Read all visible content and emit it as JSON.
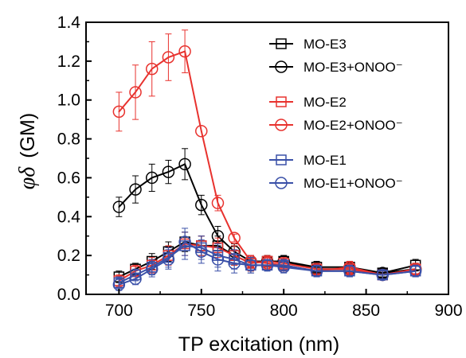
{
  "chart_data": {
    "type": "scatter",
    "xlabel": "TP excitation (nm)",
    "ylabel_symbol": "φδ",
    "ylabel_unit": "(GM)",
    "xlim": [
      680,
      900
    ],
    "ylim": [
      0.0,
      1.4
    ],
    "x_ticks": [
      "700",
      "750",
      "800",
      "850",
      "900"
    ],
    "y_ticks": [
      "0.0",
      "0.2",
      "0.4",
      "0.6",
      "0.8",
      "1.0",
      "1.2",
      "1.4"
    ],
    "grid": false,
    "legend_position": "top-right",
    "series": [
      {
        "name": "MO-E3",
        "color": "#000000",
        "marker": "square",
        "x": [
          700,
          710,
          720,
          730,
          740,
          750,
          760,
          770,
          780,
          790,
          800,
          820,
          840,
          860,
          880
        ],
        "y": [
          0.09,
          0.13,
          0.17,
          0.22,
          0.27,
          0.25,
          0.25,
          0.2,
          0.16,
          0.17,
          0.17,
          0.14,
          0.14,
          0.11,
          0.15
        ],
        "err": [
          0.03,
          0.03,
          0.04,
          0.05,
          0.05,
          0.05,
          0.05,
          0.05,
          0.04,
          0.03,
          0.03,
          0.03,
          0.03,
          0.02,
          0.03
        ]
      },
      {
        "name": "MO-E3+ONOO⁻",
        "color": "#000000",
        "marker": "circle",
        "x": [
          700,
          710,
          720,
          730,
          740,
          750,
          760,
          770,
          780,
          790,
          800,
          820,
          840,
          860,
          880
        ],
        "y": [
          0.45,
          0.54,
          0.6,
          0.63,
          0.67,
          0.46,
          0.3,
          0.22,
          0.17,
          0.17,
          0.17,
          0.13,
          0.13,
          0.11,
          0.13
        ],
        "err": [
          0.05,
          0.07,
          0.07,
          0.06,
          0.08,
          0.05,
          0.05,
          0.04,
          0.03,
          0.03,
          0.03,
          0.03,
          0.03,
          0.02,
          0.03
        ]
      },
      {
        "name": "MO-E2",
        "color": "#e8322e",
        "marker": "square",
        "x": [
          700,
          710,
          720,
          730,
          740,
          750,
          760,
          770,
          780,
          790,
          800,
          820,
          840,
          860,
          880
        ],
        "y": [
          0.07,
          0.12,
          0.15,
          0.2,
          0.26,
          0.25,
          0.24,
          0.2,
          0.16,
          0.17,
          0.16,
          0.13,
          0.13,
          0.1,
          0.13
        ],
        "err": [
          0.03,
          0.03,
          0.04,
          0.05,
          0.06,
          0.05,
          0.05,
          0.05,
          0.04,
          0.03,
          0.03,
          0.03,
          0.03,
          0.02,
          0.03
        ]
      },
      {
        "name": "MO-E2+ONOO⁻",
        "color": "#e8322e",
        "marker": "circle",
        "x": [
          700,
          710,
          720,
          730,
          740,
          750,
          760,
          770,
          780,
          790,
          800,
          820,
          840,
          860,
          880
        ],
        "y": [
          0.94,
          1.04,
          1.16,
          1.22,
          1.25,
          0.84,
          0.47,
          0.29,
          0.17,
          0.16,
          0.15,
          0.12,
          0.14,
          0.1,
          0.13
        ],
        "err": [
          0.1,
          0.14,
          0.14,
          0.12,
          0.11,
          0.0,
          0.04,
          0.02,
          0.03,
          0.03,
          0.03,
          0.03,
          0.03,
          0.02,
          0.03
        ]
      },
      {
        "name": "MO-E1",
        "color": "#3a50a8",
        "marker": "square",
        "x": [
          700,
          710,
          720,
          730,
          740,
          750,
          760,
          770,
          780,
          790,
          800,
          820,
          840,
          860,
          880
        ],
        "y": [
          0.06,
          0.1,
          0.14,
          0.19,
          0.25,
          0.24,
          0.2,
          0.18,
          0.15,
          0.15,
          0.15,
          0.12,
          0.12,
          0.1,
          0.12
        ],
        "err": [
          0.03,
          0.03,
          0.04,
          0.05,
          0.07,
          0.06,
          0.06,
          0.05,
          0.04,
          0.03,
          0.03,
          0.03,
          0.03,
          0.02,
          0.03
        ]
      },
      {
        "name": "MO-E1+ONOO⁻",
        "color": "#3a50a8",
        "marker": "circle",
        "x": [
          700,
          710,
          720,
          730,
          740,
          750,
          760,
          770,
          780,
          790,
          800,
          820,
          840,
          860,
          880
        ],
        "y": [
          0.05,
          0.08,
          0.13,
          0.18,
          0.27,
          0.22,
          0.18,
          0.16,
          0.15,
          0.15,
          0.14,
          0.12,
          0.12,
          0.1,
          0.12
        ],
        "err": [
          0.03,
          0.03,
          0.04,
          0.05,
          0.07,
          0.06,
          0.06,
          0.05,
          0.04,
          0.03,
          0.03,
          0.03,
          0.03,
          0.02,
          0.03
        ]
      }
    ]
  }
}
